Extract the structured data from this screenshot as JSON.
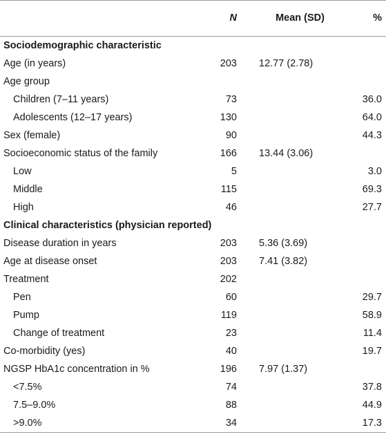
{
  "header": {
    "label": "",
    "n": "N",
    "mean": "Mean (SD)",
    "pct": "%"
  },
  "rows": [
    {
      "type": "section",
      "label": "Sociodemographic characteristic"
    },
    {
      "type": "row",
      "indent": false,
      "label": "Age (in years)",
      "n": "203",
      "mean": "12.77 (2.78)",
      "pct": ""
    },
    {
      "type": "row",
      "indent": false,
      "label": "Age group",
      "n": "",
      "mean": "",
      "pct": ""
    },
    {
      "type": "row",
      "indent": true,
      "label": "Children (7–11 years)",
      "n": "73",
      "mean": "",
      "pct": "36.0"
    },
    {
      "type": "row",
      "indent": true,
      "label": "Adolescents (12–17 years)",
      "n": "130",
      "mean": "",
      "pct": "64.0"
    },
    {
      "type": "row",
      "indent": false,
      "label": "Sex (female)",
      "n": "90",
      "mean": "",
      "pct": "44.3"
    },
    {
      "type": "row",
      "indent": false,
      "label": "Socioeconomic status of the family",
      "n": "166",
      "mean": "13.44 (3.06)",
      "pct": ""
    },
    {
      "type": "row",
      "indent": true,
      "label": "Low",
      "n": "5",
      "mean": "",
      "pct": "3.0"
    },
    {
      "type": "row",
      "indent": true,
      "label": "Middle",
      "n": "115",
      "mean": "",
      "pct": "69.3"
    },
    {
      "type": "row",
      "indent": true,
      "label": "High",
      "n": "46",
      "mean": "",
      "pct": "27.7"
    },
    {
      "type": "section",
      "label": "Clinical characteristics (physician reported)"
    },
    {
      "type": "row",
      "indent": false,
      "label": "Disease duration in years",
      "n": "203",
      "mean": "5.36 (3.69)",
      "pct": ""
    },
    {
      "type": "row",
      "indent": false,
      "label": "Age at disease onset",
      "n": "203",
      "mean": "7.41 (3.82)",
      "pct": ""
    },
    {
      "type": "row",
      "indent": false,
      "label": "Treatment",
      "n": "202",
      "mean": "",
      "pct": ""
    },
    {
      "type": "row",
      "indent": true,
      "label": "Pen",
      "n": "60",
      "mean": "",
      "pct": "29.7"
    },
    {
      "type": "row",
      "indent": true,
      "label": "Pump",
      "n": "119",
      "mean": "",
      "pct": "58.9"
    },
    {
      "type": "row",
      "indent": true,
      "label": "Change of treatment",
      "n": "23",
      "mean": "",
      "pct": "11.4"
    },
    {
      "type": "row",
      "indent": false,
      "label": "Co-morbidity (yes)",
      "n": "40",
      "mean": "",
      "pct": "19.7"
    },
    {
      "type": "row",
      "indent": false,
      "label": "NGSP HbA1c concentration in %",
      "n": "196",
      "mean": "7.97 (1.37)",
      "pct": ""
    },
    {
      "type": "row",
      "indent": true,
      "label": "<7.5%",
      "n": "74",
      "mean": "",
      "pct": "37.8"
    },
    {
      "type": "row",
      "indent": true,
      "label": "7.5–9.0%",
      "n": "88",
      "mean": "",
      "pct": "44.9"
    },
    {
      "type": "row",
      "indent": true,
      "label": ">9.0%",
      "n": "34",
      "mean": "",
      "pct": "17.3"
    }
  ]
}
